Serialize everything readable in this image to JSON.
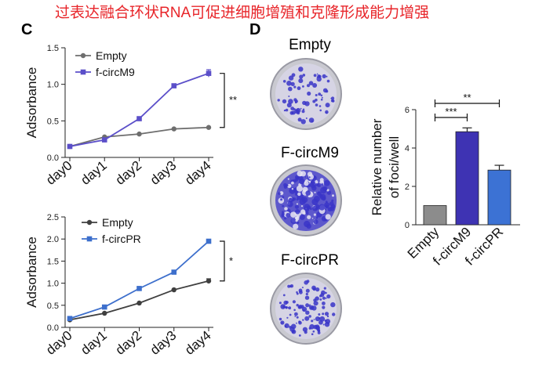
{
  "headline": {
    "text": "过表达融合环状RNA可促进细胞增殖和克隆形成能力增强",
    "color": "#e8252a"
  },
  "panels": {
    "c_label": "C",
    "d_label": "D"
  },
  "dish_panel": {
    "labels": [
      "Empty",
      "F-circM9",
      "F-circPR"
    ],
    "colony_density": [
      0.3,
      0.9,
      0.55
    ],
    "stain_color": "#3a35c8"
  },
  "chart_data": [
    {
      "id": "c-top",
      "type": "line",
      "categories": [
        "day0",
        "day1",
        "day2",
        "day3",
        "day4"
      ],
      "ylabel": "Adsorbance",
      "ylim": [
        0,
        1.5
      ],
      "yticks": [
        "0.0",
        "0.5",
        "1.0",
        "1.5"
      ],
      "grid": false,
      "legend_position": "top-left",
      "series": [
        {
          "name": "Empty",
          "values": [
            0.15,
            0.28,
            0.32,
            0.39,
            0.41
          ],
          "color": "#6e6e6e",
          "errors": [
            0,
            0,
            0,
            0,
            0
          ]
        },
        {
          "name": "f-circM9",
          "values": [
            0.15,
            0.24,
            0.53,
            0.98,
            1.15
          ],
          "color": "#5b4fc9",
          "errors": [
            0,
            0,
            0.02,
            0,
            0.05
          ]
        }
      ],
      "significance": "**"
    },
    {
      "id": "c-bottom",
      "type": "line",
      "categories": [
        "day0",
        "day1",
        "day2",
        "day3",
        "day4"
      ],
      "ylabel": "Adsorbance",
      "ylim": [
        0,
        2.5
      ],
      "yticks": [
        "0.0",
        "0.5",
        "1.0",
        "1.5",
        "2.0",
        "2.5"
      ],
      "grid": false,
      "legend_position": "top-left",
      "series": [
        {
          "name": "Empty",
          "values": [
            0.17,
            0.32,
            0.55,
            0.85,
            1.05
          ],
          "color": "#3f3f3f",
          "errors": [
            0,
            0,
            0,
            0,
            0.05
          ]
        },
        {
          "name": "f-circPR",
          "values": [
            0.2,
            0.46,
            0.88,
            1.25,
            1.95
          ],
          "color": "#3d6fcc",
          "errors": [
            0,
            0,
            0,
            0,
            0.03
          ]
        }
      ],
      "significance": "*"
    },
    {
      "id": "d-bar",
      "type": "bar",
      "categories": [
        "Empty",
        "f-circM9",
        "f-circPR"
      ],
      "values": [
        1.0,
        4.85,
        2.85
      ],
      "errors": [
        0,
        0.2,
        0.25
      ],
      "colors": [
        "#8c8c8c",
        "#3e33b3",
        "#3c72d4"
      ],
      "ylabel_lines": [
        "Relative number",
        "of foci/well"
      ],
      "ylim": [
        0,
        6
      ],
      "yticks": [
        "0",
        "2",
        "4",
        "6"
      ],
      "grid": false,
      "comparisons": [
        {
          "from": 0,
          "to": 1,
          "label": "***"
        },
        {
          "from": 0,
          "to": 2,
          "label": "**"
        }
      ]
    }
  ]
}
